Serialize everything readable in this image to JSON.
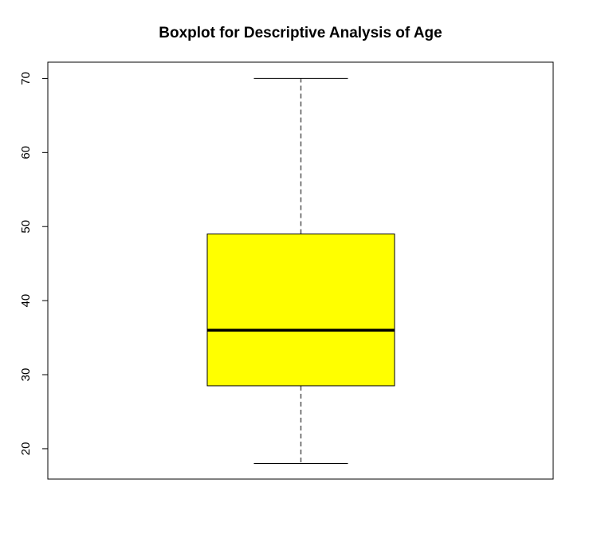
{
  "chart_data": {
    "type": "boxplot",
    "title": "Boxplot for Descriptive Analysis of Age",
    "xlabel": "",
    "ylabel": "",
    "ylim": [
      15.9,
      72.2
    ],
    "y_ticks": [
      20,
      30,
      40,
      50,
      60,
      70
    ],
    "grid": false,
    "box": {
      "whisker_low": 18,
      "q1": 28.5,
      "median": 36,
      "q3": 49,
      "whisker_high": 70
    },
    "colors": {
      "box_fill": "#ffff00",
      "box_stroke": "#000000",
      "median_line": "#000000",
      "whisker_line": "#555555",
      "axis": "#000000"
    }
  }
}
